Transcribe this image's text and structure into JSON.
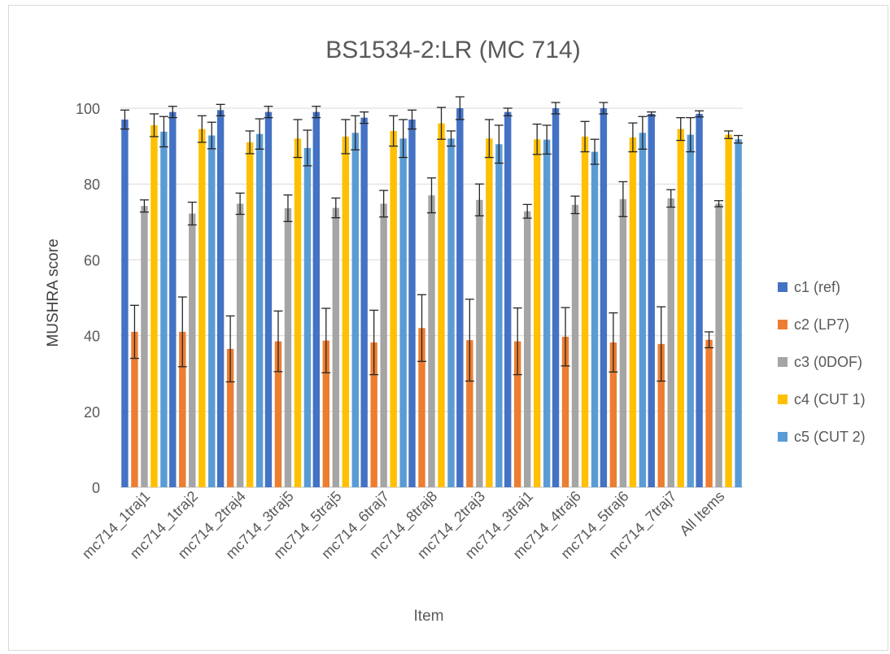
{
  "chart_data": {
    "type": "bar",
    "title": "BS1534-2:LR (MC 714)",
    "xlabel": "Item",
    "ylabel": "MUSHRA score",
    "ylim": [
      0,
      100
    ],
    "yticks": [
      0,
      20,
      40,
      60,
      80,
      100
    ],
    "grid": true,
    "legend_position": "right",
    "categories": [
      "mc714_1traj1",
      "mc714_1traj2",
      "mc714_2traj4",
      "mc714_3traj5",
      "mc714_5traj5",
      "mc714_6traj7",
      "mc714_8traj8",
      "mc714_2traj3",
      "mc714_3traj1",
      "mc714_4traj6",
      "mc714_5traj6",
      "mc714_7traj7",
      "All Items"
    ],
    "series": [
      {
        "name": "c1 (ref)",
        "color": "#4472c4",
        "values": [
          97,
          99,
          99.5,
          99,
          99,
          97.5,
          97,
          100,
          99,
          100,
          100,
          98.5,
          98.5
        ],
        "err": [
          2.5,
          1.5,
          1.5,
          1.5,
          1.5,
          1.5,
          2.5,
          3,
          1,
          1.5,
          1.5,
          0.5,
          0.8
        ]
      },
      {
        "name": "c2 (LP7)",
        "color": "#ed7d31",
        "values": [
          41,
          41,
          36.5,
          38.5,
          38.7,
          38.2,
          42,
          38.8,
          38.5,
          39.7,
          38.2,
          37.8,
          38.9
        ],
        "err": [
          7,
          9.2,
          8.7,
          8,
          8.5,
          8.5,
          8.8,
          10.8,
          8.8,
          7.7,
          7.8,
          9.8,
          2.1
        ]
      },
      {
        "name": "c3 (0DOF)",
        "color": "#a5a5a5",
        "values": [
          74.2,
          72.2,
          74.8,
          73.6,
          73.7,
          74.8,
          77,
          75.8,
          72.8,
          74.5,
          76,
          76.2,
          74.8
        ],
        "err": [
          1.6,
          3,
          2.8,
          3.5,
          2.6,
          3.5,
          4.6,
          4.2,
          1.8,
          2.3,
          4.6,
          2.3,
          0.8
        ]
      },
      {
        "name": "c4 (CUT 1)",
        "color": "#ffc000",
        "values": [
          95.5,
          94.5,
          91,
          92,
          92.5,
          94,
          96,
          92,
          91.8,
          92.5,
          92.3,
          94.5,
          93
        ],
        "err": [
          3,
          3.5,
          3,
          5,
          4.5,
          4,
          4.2,
          5,
          4,
          4,
          3.8,
          3,
          1
        ]
      },
      {
        "name": "c5 (CUT 2)",
        "color": "#5b9bd5",
        "values": [
          93.8,
          92.8,
          93.2,
          89.5,
          93.5,
          92,
          92,
          90.5,
          91.7,
          88.5,
          93.5,
          93,
          91.8
        ],
        "err": [
          4,
          3.5,
          4,
          4.7,
          4.5,
          5,
          2,
          5,
          3.8,
          3.3,
          4.3,
          4.5,
          1
        ]
      }
    ]
  }
}
